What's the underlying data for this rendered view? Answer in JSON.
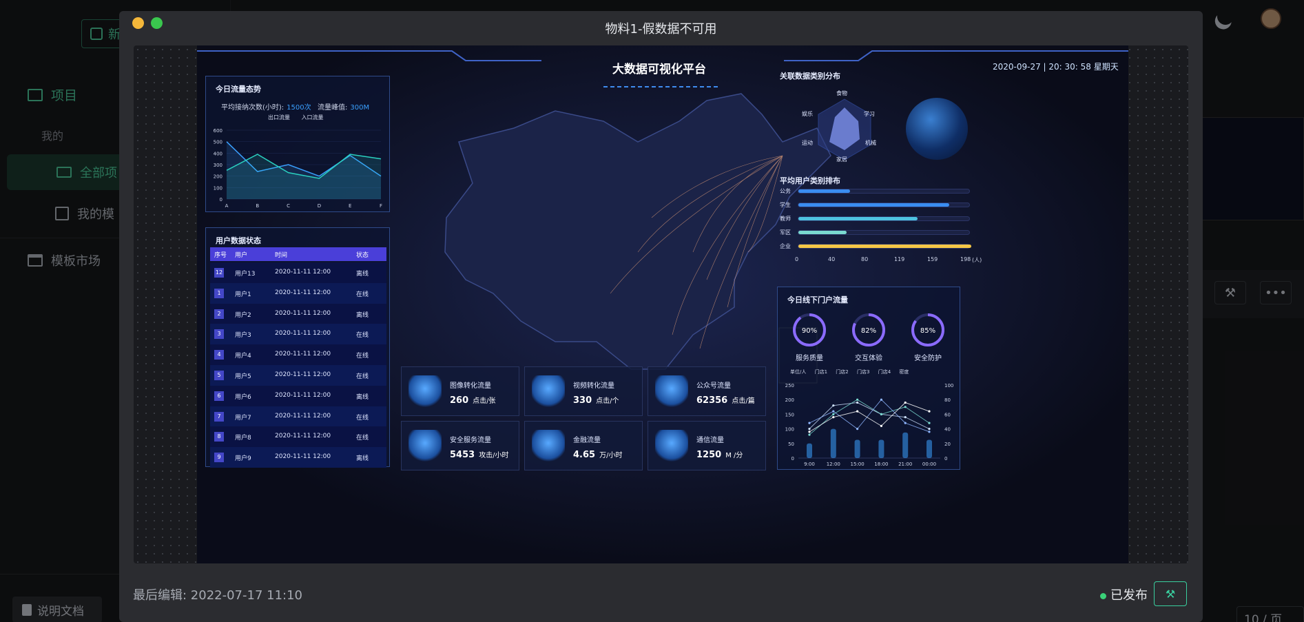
{
  "sidebar": {
    "new_button": "新",
    "project": "项目",
    "mine": "我的",
    "all_projects": "全部项",
    "my_templates": "我的模",
    "market": "模板市场",
    "doc_button": "说明文档"
  },
  "pager": {
    "label": "10 / 页"
  },
  "modal": {
    "title": "物料1-假数据不可用",
    "last_edit": "最后编辑: 2022-07-17 11:10",
    "status": "已发布"
  },
  "dashboard": {
    "title": "大数据可视化平台",
    "datetime": "2020-09-27 | 20: 30: 58 星期天",
    "traffic": {
      "title": "今日流量态势",
      "avg_label": "平均接纳次数(小时):",
      "avg_value": "1500次",
      "peak_label": "流量峰值:",
      "peak_value": "300M",
      "legend": [
        "出口流量",
        "入口流量"
      ]
    },
    "users_table": {
      "title": "用户数据状态",
      "headers": [
        "序号",
        "用户",
        "时间",
        "状态"
      ],
      "rows": [
        {
          "idx": "12",
          "user": "用户13",
          "time": "2020-11-11 12:00",
          "status": "离线"
        },
        {
          "idx": "1",
          "user": "用户1",
          "time": "2020-11-11 12:00",
          "status": "在线"
        },
        {
          "idx": "2",
          "user": "用户2",
          "time": "2020-11-11 12:00",
          "status": "离线"
        },
        {
          "idx": "3",
          "user": "用户3",
          "time": "2020-11-11 12:00",
          "status": "在线"
        },
        {
          "idx": "4",
          "user": "用户4",
          "time": "2020-11-11 12:00",
          "status": "在线"
        },
        {
          "idx": "5",
          "user": "用户5",
          "time": "2020-11-11 12:00",
          "status": "在线"
        },
        {
          "idx": "6",
          "user": "用户6",
          "time": "2020-11-11 12:00",
          "status": "离线"
        },
        {
          "idx": "7",
          "user": "用户7",
          "time": "2020-11-11 12:00",
          "status": "在线"
        },
        {
          "idx": "8",
          "user": "用户8",
          "time": "2020-11-11 12:00",
          "status": "在线"
        },
        {
          "idx": "9",
          "user": "用户9",
          "time": "2020-11-11 12:00",
          "status": "离线"
        }
      ]
    },
    "stats": [
      {
        "label": "图像转化流量",
        "value": "260",
        "unit": "点击/张"
      },
      {
        "label": "视频转化流量",
        "value": "330",
        "unit": "点击/个"
      },
      {
        "label": "公众号流量",
        "value": "62356",
        "unit": "点击/篇"
      },
      {
        "label": "安全服务流量",
        "value": "5453",
        "unit": "攻击/小时"
      },
      {
        "label": "金融流量",
        "value": "4.65",
        "unit": "万/小时"
      },
      {
        "label": "通信流量",
        "value": "1250",
        "unit": "M /分"
      }
    ],
    "radar": {
      "title": "关联数据类别分布",
      "labels": [
        "食物",
        "学习",
        "机械",
        "家居",
        "运动",
        "娱乐"
      ]
    },
    "ranking": {
      "title": "平均用户类别排布",
      "unit": "(人)",
      "ticks": [
        "0",
        "40",
        "80",
        "119",
        "159",
        "198"
      ]
    },
    "store": {
      "title": "今日线下门户流量",
      "rings": [
        {
          "label": "服务质量",
          "value": "90%",
          "pct": 0.9
        },
        {
          "label": "交互体验",
          "value": "82%",
          "pct": 0.82
        },
        {
          "label": "安全防护",
          "value": "85%",
          "pct": 0.85
        }
      ],
      "legend_unit": "单位/人",
      "legend_right": "密度",
      "legend": [
        "门店1",
        "门店2",
        "门店3",
        "门店4"
      ]
    }
  },
  "chart_data": [
    {
      "type": "area",
      "categories": [
        "A",
        "B",
        "C",
        "D",
        "E",
        "F"
      ],
      "yticks": [
        "0",
        "100",
        "200",
        "300",
        "400",
        "500",
        "600"
      ],
      "ylim": [
        0,
        600
      ],
      "series": [
        {
          "name": "出口流量",
          "values": [
            500,
            240,
            300,
            200,
            380,
            200
          ]
        },
        {
          "name": "入口流量",
          "values": [
            250,
            390,
            230,
            180,
            390,
            350
          ]
        }
      ],
      "colors": [
        "#3aa0ff",
        "#2ad1c0"
      ]
    },
    {
      "type": "bar",
      "orientation": "horizontal",
      "categories": [
        "公务",
        "学生",
        "教师",
        "军区",
        "企业"
      ],
      "values": [
        60,
        175,
        138,
        56,
        200
      ],
      "xlim": [
        0,
        198
      ],
      "colors": [
        "#3a8df0",
        "#3a8df0",
        "#4ec3e0",
        "#7ad9d0",
        "#f5c746"
      ]
    },
    {
      "type": "line",
      "categories": [
        "9:00",
        "12:00",
        "15:00",
        "18:00",
        "21:00",
        "00:00"
      ],
      "yticks_left": [
        "0",
        "50",
        "100",
        "150",
        "200",
        "250"
      ],
      "yticks_right": [
        "0",
        "20",
        "40",
        "60",
        "80",
        "100"
      ],
      "ylim": [
        0,
        250
      ],
      "series": [
        {
          "name": "门店1",
          "values": [
            100,
            180,
            190,
            150,
            140,
            100
          ]
        },
        {
          "name": "门店2",
          "values": [
            80,
            150,
            200,
            150,
            175,
            120
          ]
        },
        {
          "name": "门店3",
          "values": [
            120,
            160,
            100,
            200,
            120,
            90
          ]
        },
        {
          "name": "门店4",
          "values": [
            90,
            140,
            160,
            110,
            190,
            160
          ]
        }
      ],
      "bars": [
        20,
        40,
        25,
        25,
        35,
        25
      ]
    }
  ]
}
